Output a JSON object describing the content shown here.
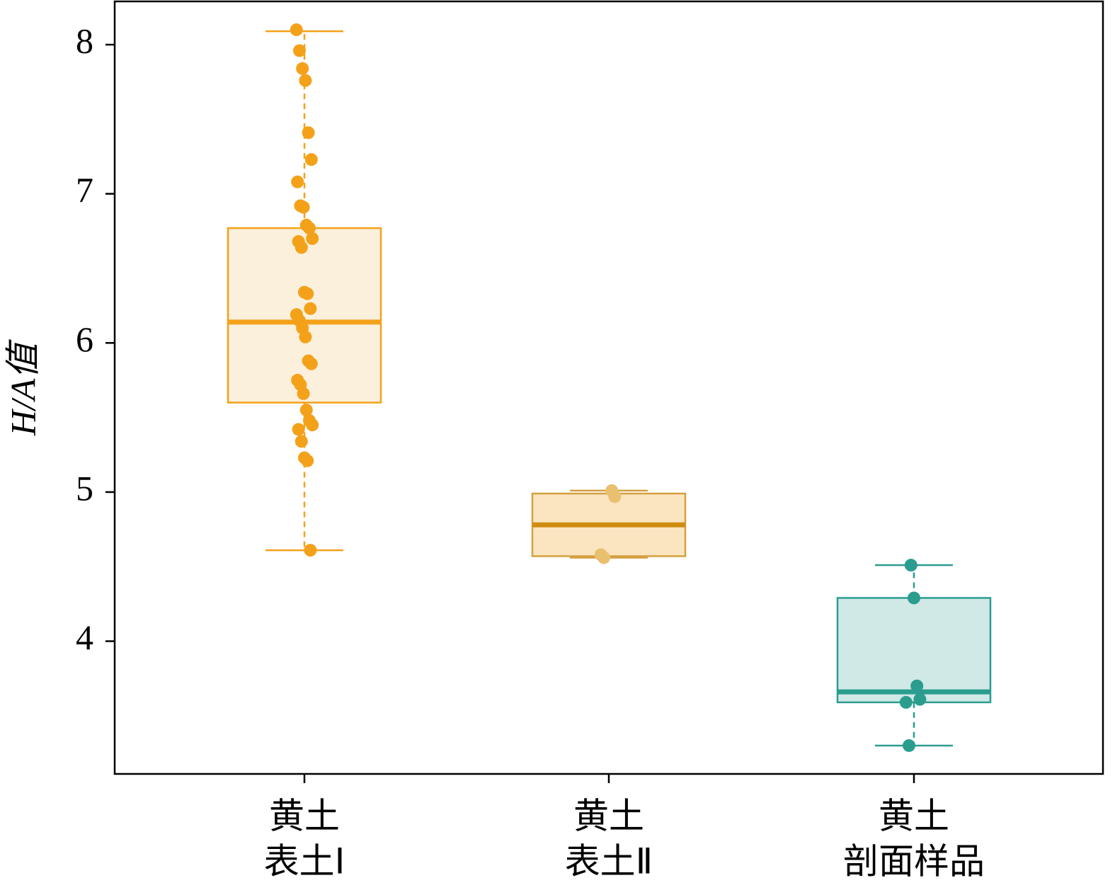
{
  "chart_data": {
    "type": "box",
    "ylabel": "H/A值",
    "categories": [
      [
        "黄土",
        "表土Ⅰ"
      ],
      [
        "黄土",
        "表土Ⅱ"
      ],
      [
        "黄土",
        "剖面样品"
      ]
    ],
    "ylim": [
      3.11,
      8.29
    ],
    "yticks": [
      4,
      5,
      6,
      7,
      8
    ],
    "boxes": [
      {
        "color": "#f4a11a",
        "fill": "#faf0dc",
        "median_color": "#f4a11a",
        "point_color": "#f4a11a",
        "whislo": 4.61,
        "q1": 5.6,
        "med": 6.14,
        "q3": 6.77,
        "whishi": 8.09,
        "points": [
          8.1,
          7.96,
          7.84,
          7.76,
          7.41,
          7.23,
          7.08,
          6.92,
          6.91,
          6.79,
          6.77,
          6.7,
          6.68,
          6.64,
          6.34,
          6.33,
          6.23,
          6.19,
          6.15,
          6.1,
          6.04,
          5.88,
          5.86,
          5.75,
          5.72,
          5.66,
          5.55,
          5.48,
          5.45,
          5.42,
          5.34,
          5.23,
          5.21,
          4.61
        ]
      },
      {
        "color": "#d4a040",
        "fill": "#fbe5c0",
        "median_color": "#d08c10",
        "point_color": "#e8c070",
        "whislo": 4.56,
        "q1": 4.57,
        "med": 4.78,
        "q3": 4.99,
        "whishi": 5.01,
        "points": [
          5.01,
          4.97,
          4.58,
          4.56
        ]
      },
      {
        "color": "#2a9d8f",
        "fill": "#d0e8e6",
        "median_color": "#2a9d8f",
        "point_color": "#2a9d8f",
        "whislo": 3.3,
        "q1": 3.59,
        "med": 3.66,
        "q3": 4.29,
        "whishi": 4.51,
        "points": [
          4.51,
          4.29,
          3.7,
          3.61,
          3.59,
          3.3
        ]
      }
    ]
  }
}
